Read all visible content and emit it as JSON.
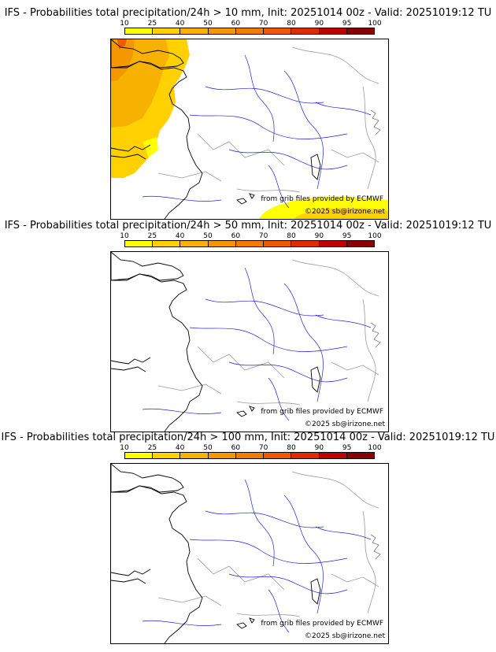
{
  "scale": {
    "ticks": [
      "10",
      "25",
      "40",
      "50",
      "60",
      "70",
      "80",
      "90",
      "95",
      "100"
    ],
    "colors": [
      "#ffff00",
      "#ffd100",
      "#f7b100",
      "#f59700",
      "#f27b00",
      "#ef5a00",
      "#e02a00",
      "#c00000",
      "#8a0000"
    ]
  },
  "panels": [
    {
      "title": "IFS - Probabilities total precipitation/24h > 10 mm, Init: 20251014 00z - Valid: 20251019:12 TU",
      "source_note": "from grib files provided by ECMWF",
      "copyright": "©2025 sb@irizone.net",
      "has_precip": true
    },
    {
      "title": "IFS - Probabilities total precipitation/24h > 50 mm, Init: 20251014 00z - Valid: 20251019:12 TU",
      "source_note": "from grib files provided by ECMWF",
      "copyright": "©2025 sb@irizone.net",
      "has_precip": false
    },
    {
      "title": "IFS - Probabilities total precipitation/24h > 100 mm, Init: 20251014 00z - Valid: 20251019:12 TU",
      "source_note": "from grib files provided by ECMWF",
      "copyright": "©2025 sb@irizone.net",
      "has_precip": false
    }
  ]
}
